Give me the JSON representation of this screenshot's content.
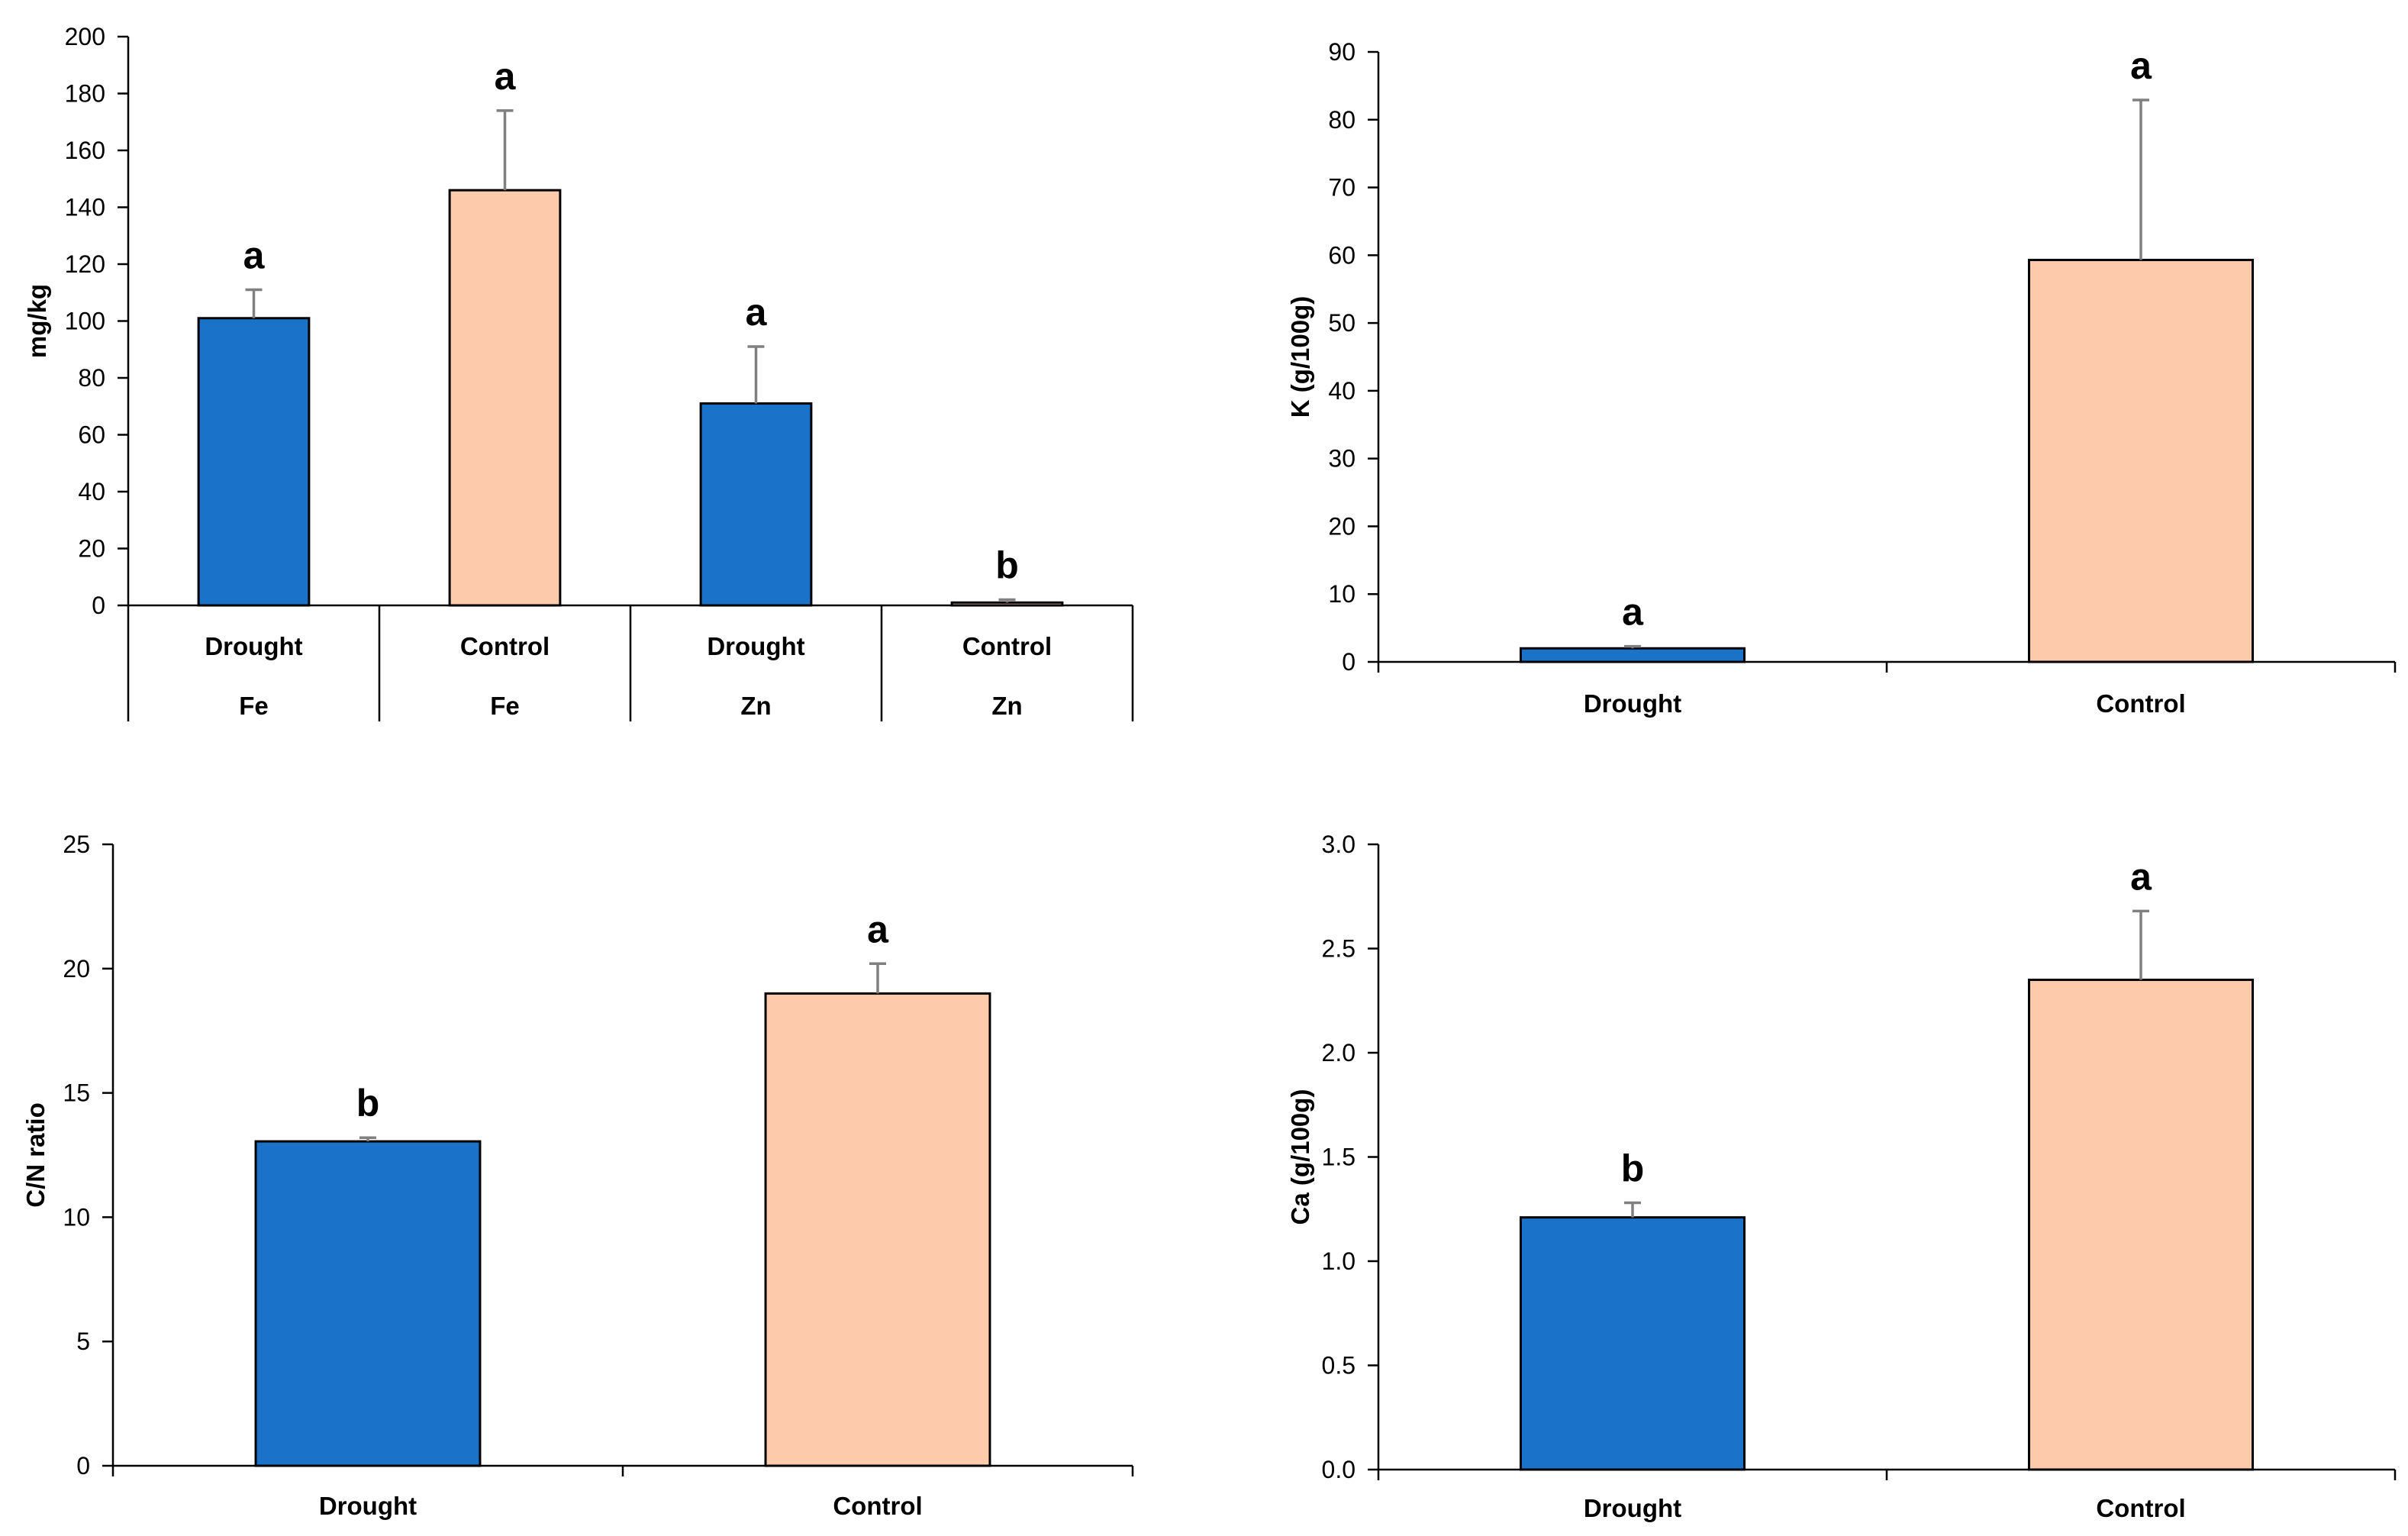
{
  "colors": {
    "drought": "#1b73c9",
    "control": "#fdcbab",
    "error_bar": "#808080",
    "axis": "#000000"
  },
  "chart_data": [
    {
      "id": "fe-zn",
      "type": "bar",
      "ylabel": "mg/kg",
      "ylim": [
        0,
        200
      ],
      "ytick_step": 20,
      "ytick_decimals": 0,
      "categories": [
        "Drought",
        "Control",
        "Drought",
        "Control"
      ],
      "groups": [
        "Fe",
        "Fe",
        "Zn",
        "Zn"
      ],
      "series_index": [
        0,
        1,
        0,
        1
      ],
      "values": [
        101,
        146,
        71,
        1
      ],
      "errors": [
        10,
        28,
        20,
        1
      ],
      "letters": [
        "a",
        "a",
        "a",
        "b"
      ]
    },
    {
      "id": "potassium",
      "type": "bar",
      "ylabel": "K (g/100g)",
      "ylim": [
        0,
        90
      ],
      "ytick_step": 10,
      "ytick_decimals": 0,
      "categories": [
        "Drought",
        "Control"
      ],
      "series_index": [
        0,
        1
      ],
      "values": [
        2,
        59.3
      ],
      "errors": [
        0.3,
        23.6
      ],
      "letters": [
        "a",
        "a"
      ]
    },
    {
      "id": "cn-ratio",
      "type": "bar",
      "ylabel": "C/N ratio",
      "ylim": [
        0,
        25
      ],
      "ytick_step": 5,
      "ytick_decimals": 0,
      "categories": [
        "Drought",
        "Control"
      ],
      "series_index": [
        0,
        1
      ],
      "values": [
        13.05,
        19
      ],
      "errors": [
        0.15,
        1.2
      ],
      "letters": [
        "b",
        "a"
      ]
    },
    {
      "id": "calcium",
      "type": "bar",
      "ylabel": "Ca (g/100g)",
      "ylim": [
        0,
        3
      ],
      "ytick_step": 0.5,
      "ytick_decimals": 1,
      "categories": [
        "Drought",
        "Control"
      ],
      "series_index": [
        0,
        1
      ],
      "values": [
        1.21,
        2.35
      ],
      "errors": [
        0.07,
        0.33
      ],
      "letters": [
        "b",
        "a"
      ]
    }
  ]
}
